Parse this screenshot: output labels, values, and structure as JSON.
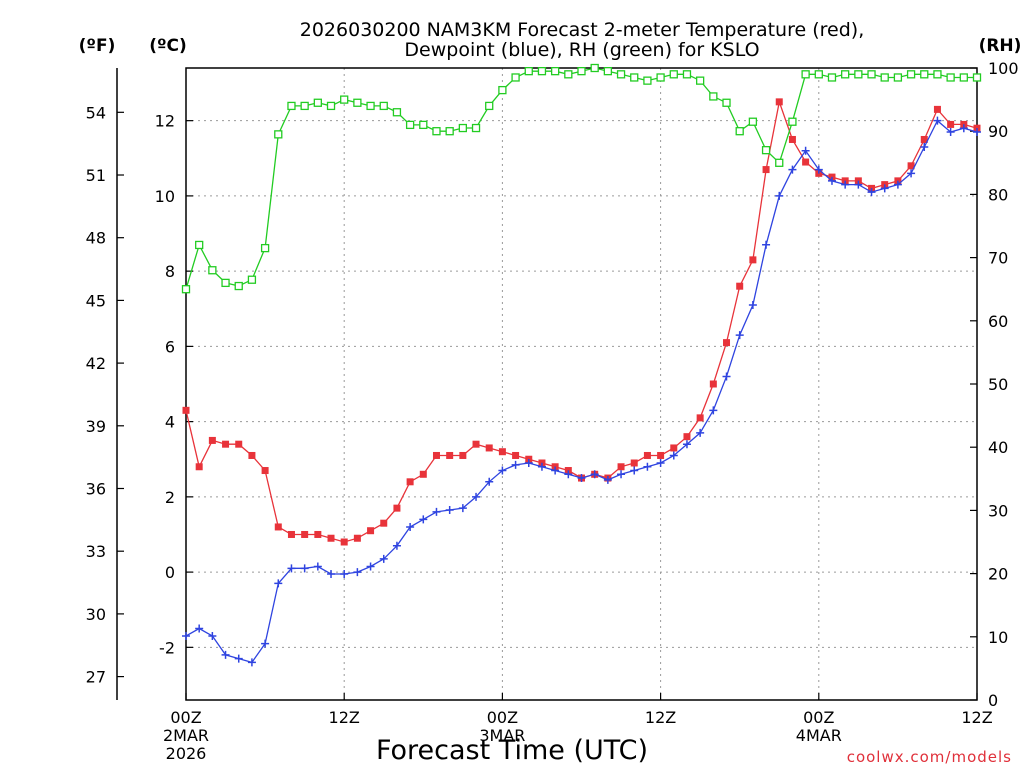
{
  "chart_data": {
    "type": "line",
    "title_line1": "2026030200 NAM3KM Forecast 2-meter Temperature (red),",
    "title_line2": "Dewpoint (blue), RH (green) for KSLO",
    "xlabel": "Forecast Time (UTC)",
    "credit": "coolwx.com/models",
    "units": {
      "fahrenheit": "(ºF)",
      "celsius": "(ºC)",
      "rh": "(RH)"
    },
    "x_range_hours": [
      0,
      60
    ],
    "ylim_celsius": [
      -3.4,
      13.4
    ],
    "ylim_rh": [
      0,
      100
    ],
    "celsius_ticks": [
      -2,
      0,
      2,
      4,
      6,
      8,
      10,
      12
    ],
    "fahrenheit_ticks": [
      27,
      30,
      33,
      36,
      39,
      42,
      45,
      48,
      51,
      54
    ],
    "rh_ticks": [
      0,
      10,
      20,
      30,
      40,
      50,
      60,
      70,
      80,
      90,
      100
    ],
    "x_ticks": [
      {
        "hour": 0,
        "label": "00Z",
        "date": "2MAR",
        "year": "2026"
      },
      {
        "hour": 12,
        "label": "12Z",
        "date": "",
        "year": ""
      },
      {
        "hour": 24,
        "label": "00Z",
        "date": "3MAR",
        "year": ""
      },
      {
        "hour": 36,
        "label": "12Z",
        "date": "",
        "year": ""
      },
      {
        "hour": 48,
        "label": "00Z",
        "date": "4MAR",
        "year": ""
      },
      {
        "hour": 60,
        "label": "12Z",
        "date": "",
        "year": ""
      }
    ],
    "series": [
      {
        "name": "2-meter Temperature",
        "axis": "celsius",
        "color": "#e8333a",
        "marker": "filled-square",
        "x": [
          0,
          1,
          2,
          3,
          4,
          5,
          6,
          7,
          8,
          9,
          10,
          11,
          12,
          13,
          14,
          15,
          16,
          17,
          18,
          19,
          20,
          21,
          22,
          23,
          24,
          25,
          26,
          27,
          28,
          29,
          30,
          31,
          32,
          33,
          34,
          35,
          36,
          37,
          38,
          39,
          40,
          41,
          42,
          43,
          44,
          45,
          46,
          47,
          48,
          49,
          50,
          51,
          52,
          53,
          54,
          55,
          56,
          57,
          58,
          59,
          60
        ],
        "values": [
          4.3,
          2.8,
          3.5,
          3.4,
          3.4,
          3.1,
          2.7,
          1.2,
          1.0,
          1.0,
          1.0,
          0.9,
          0.8,
          0.9,
          1.1,
          1.3,
          1.7,
          2.4,
          2.6,
          3.1,
          3.1,
          3.1,
          3.4,
          3.3,
          3.2,
          3.1,
          3.0,
          2.9,
          2.8,
          2.7,
          2.5,
          2.6,
          2.5,
          2.8,
          2.9,
          3.1,
          3.1,
          3.3,
          3.6,
          4.1,
          5.0,
          6.1,
          7.6,
          8.3,
          10.7,
          12.5,
          11.5,
          10.9,
          10.6,
          10.5,
          10.4,
          10.4,
          10.2,
          10.3,
          10.4,
          10.8,
          11.5,
          12.3,
          11.9,
          11.9,
          11.8
        ]
      },
      {
        "name": "Dewpoint",
        "axis": "celsius",
        "color": "#2f44e0",
        "marker": "plus",
        "x": [
          0,
          1,
          2,
          3,
          4,
          5,
          6,
          7,
          8,
          9,
          10,
          11,
          12,
          13,
          14,
          15,
          16,
          17,
          18,
          19,
          20,
          21,
          22,
          23,
          24,
          25,
          26,
          27,
          28,
          29,
          30,
          31,
          32,
          33,
          34,
          35,
          36,
          37,
          38,
          39,
          40,
          41,
          42,
          43,
          44,
          45,
          46,
          47,
          48,
          49,
          50,
          51,
          52,
          53,
          54,
          55,
          56,
          57,
          58,
          59,
          60
        ],
        "values": [
          -1.7,
          -1.5,
          -1.7,
          -2.2,
          -2.3,
          -2.4,
          -1.9,
          -0.3,
          0.1,
          0.1,
          0.15,
          -0.05,
          -0.05,
          0.0,
          0.15,
          0.35,
          0.7,
          1.2,
          1.4,
          1.6,
          1.65,
          1.7,
          2.0,
          2.4,
          2.7,
          2.85,
          2.9,
          2.8,
          2.7,
          2.6,
          2.5,
          2.6,
          2.45,
          2.6,
          2.7,
          2.8,
          2.9,
          3.1,
          3.4,
          3.7,
          4.3,
          5.2,
          6.3,
          7.1,
          8.7,
          10.0,
          10.7,
          11.2,
          10.7,
          10.4,
          10.3,
          10.3,
          10.1,
          10.2,
          10.3,
          10.6,
          11.3,
          12.0,
          11.7,
          11.8,
          11.7
        ]
      },
      {
        "name": "RH",
        "axis": "rh",
        "color": "#22cc22",
        "marker": "open-square",
        "x": [
          0,
          1,
          2,
          3,
          4,
          5,
          6,
          7,
          8,
          9,
          10,
          11,
          12,
          13,
          14,
          15,
          16,
          17,
          18,
          19,
          20,
          21,
          22,
          23,
          24,
          25,
          26,
          27,
          28,
          29,
          30,
          31,
          32,
          33,
          34,
          35,
          36,
          37,
          38,
          39,
          40,
          41,
          42,
          43,
          44,
          45,
          46,
          47,
          48,
          49,
          50,
          51,
          52,
          53,
          54,
          55,
          56,
          57,
          58,
          59,
          60
        ],
        "values": [
          65,
          72,
          68,
          66,
          65.5,
          66.5,
          71.5,
          89.5,
          94,
          94,
          94.5,
          94,
          95,
          94.5,
          94,
          94,
          93,
          91,
          91,
          90,
          90,
          90.5,
          90.5,
          94,
          96.5,
          98.5,
          99.5,
          99.5,
          99.5,
          99,
          99.5,
          100,
          99.5,
          99,
          98.5,
          98,
          98.5,
          99,
          99,
          98,
          95.5,
          94.5,
          90,
          91.5,
          87,
          85,
          91.5,
          99,
          99,
          98.5,
          99,
          99,
          99,
          98.5,
          98.5,
          99,
          99,
          99,
          98.5,
          98.5,
          98.5
        ]
      }
    ]
  }
}
